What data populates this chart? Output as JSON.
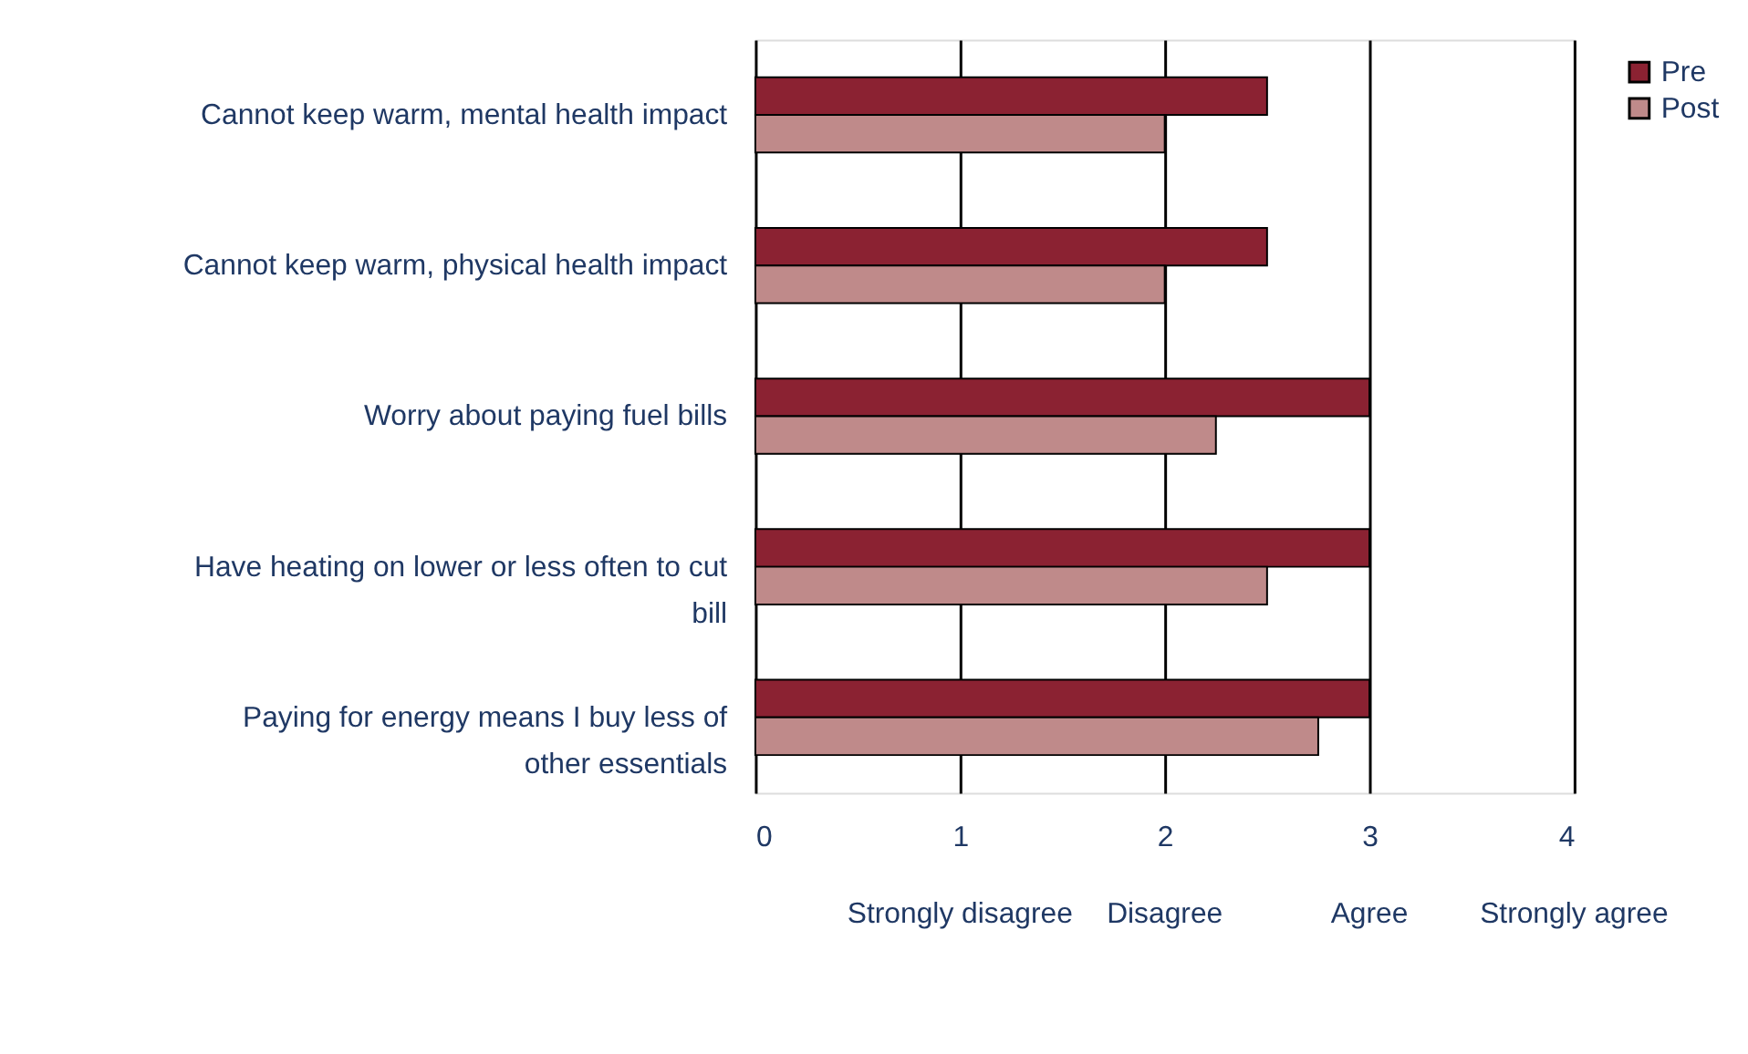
{
  "chart_data": {
    "type": "bar",
    "orientation": "horizontal",
    "categories": [
      "Cannot keep warm, mental health impact",
      "Cannot keep warm, physical health impact",
      "Worry about paying fuel bills",
      "Have heating on lower or less often to cut bill",
      "Paying for energy means I buy less of other essentials"
    ],
    "series": [
      {
        "name": "Pre",
        "color": "#8b2232",
        "values": [
          2.5,
          2.5,
          3,
          3,
          3
        ]
      },
      {
        "name": "Post",
        "color": "#bf8a8a",
        "values": [
          2,
          2,
          2.25,
          2.5,
          2.75
        ]
      }
    ],
    "xlim": [
      0,
      4
    ],
    "xticks": [
      0,
      1,
      2,
      3,
      4
    ],
    "grid": "x",
    "legend": "right",
    "annotations": [
      "Strongly disagree",
      "Disagree",
      "Agree",
      "Strongly agree"
    ]
  }
}
